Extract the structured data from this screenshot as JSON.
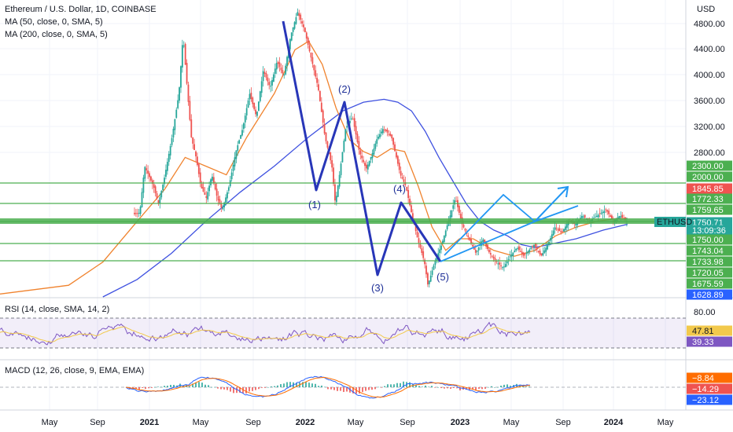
{
  "legend": {
    "title": "Ethereum / U.S. Dollar, 1D, COINBASE",
    "ma50": "MA (50, close, 0, SMA, 5)",
    "ma200": "MA (200, close, 0, SMA, 5)",
    "rsi": "RSI (14, close, SMA, 14, 2)",
    "macd": "MACD (12, 26, close, 9, EMA, EMA)"
  },
  "currency": "USD",
  "symbol_tag": "ETHUSD",
  "colors": {
    "up": "#26a69a",
    "down": "#ef5350",
    "ma50": "#f0832e",
    "ma200": "#3f51e0",
    "wave": "#2836b8",
    "arrow": "#2196f3",
    "hline": "#4caf50",
    "rsi": "#7e57c2",
    "rsi_ma": "#f2c94c",
    "macd": "#2962ff",
    "signal": "#ff6d00"
  },
  "chart_data": {
    "type": "line",
    "x_labels": [
      "May",
      "Sep",
      "2021",
      "May",
      "Sep",
      "2022",
      "May",
      "Sep",
      "2023",
      "May",
      "Sep",
      "2024",
      "May"
    ],
    "y_ticks": [
      "4800.00",
      "4400.00",
      "4000.00",
      "3600.00",
      "3200.00",
      "2800.00"
    ],
    "price_tags": [
      {
        "label": "2300.00",
        "color": "#4caf50"
      },
      {
        "label": "2000.00",
        "color": "#4caf50"
      },
      {
        "label": "1845.85",
        "color": "#ef5350"
      },
      {
        "label": "1772.33",
        "color": "#4caf50"
      },
      {
        "label": "1759.65",
        "color": "#4caf50"
      },
      {
        "label": "1750.71",
        "color": "#26a69a"
      },
      {
        "label": "13:09:36",
        "color": "#26a69a"
      },
      {
        "label": "1750.00",
        "color": "#4caf50"
      },
      {
        "label": "1743.04",
        "color": "#4caf50"
      },
      {
        "label": "1733.98",
        "color": "#4caf50"
      },
      {
        "label": "1720.05",
        "color": "#4caf50"
      },
      {
        "label": "1675.59",
        "color": "#4caf50"
      },
      {
        "label": "1628.89",
        "color": "#2962ff"
      }
    ],
    "rsi_ticks": [
      "80.00"
    ],
    "rsi_tags": [
      {
        "label": "47.81",
        "color": "#f2c94c"
      },
      {
        "label": "39.33",
        "color": "#7e57c2"
      }
    ],
    "macd_tags": [
      {
        "label": "−8.84",
        "color": "#ff6d00"
      },
      {
        "label": "−14.29",
        "color": "#ef5350"
      },
      {
        "label": "−23.12",
        "color": "#2962ff"
      }
    ],
    "wave_labels": [
      "(1)",
      "(2)",
      "(3)",
      "(4)",
      "(5)"
    ],
    "price_path": [
      [
        0.0,
        0.98
      ],
      [
        0.05,
        0.96
      ],
      [
        0.1,
        0.93
      ],
      [
        0.13,
        0.88
      ],
      [
        0.15,
        0.82
      ],
      [
        0.17,
        0.75
      ],
      [
        0.19,
        0.72
      ],
      [
        0.205,
        0.71
      ],
      [
        0.212,
        0.55
      ],
      [
        0.225,
        0.62
      ],
      [
        0.232,
        0.68
      ],
      [
        0.24,
        0.6
      ],
      [
        0.252,
        0.45
      ],
      [
        0.262,
        0.3
      ],
      [
        0.268,
        0.1
      ],
      [
        0.274,
        0.28
      ],
      [
        0.28,
        0.45
      ],
      [
        0.287,
        0.52
      ],
      [
        0.294,
        0.62
      ],
      [
        0.302,
        0.66
      ],
      [
        0.31,
        0.58
      ],
      [
        0.318,
        0.66
      ],
      [
        0.325,
        0.7
      ],
      [
        0.335,
        0.62
      ],
      [
        0.345,
        0.5
      ],
      [
        0.355,
        0.42
      ],
      [
        0.365,
        0.3
      ],
      [
        0.375,
        0.38
      ],
      [
        0.385,
        0.22
      ],
      [
        0.395,
        0.28
      ],
      [
        0.405,
        0.19
      ],
      [
        0.415,
        0.24
      ],
      [
        0.425,
        0.1
      ],
      [
        0.435,
        0.02
      ],
      [
        0.445,
        0.08
      ],
      [
        0.455,
        0.18
      ],
      [
        0.465,
        0.28
      ],
      [
        0.475,
        0.45
      ],
      [
        0.485,
        0.55
      ],
      [
        0.49,
        0.68
      ],
      [
        0.495,
        0.6
      ],
      [
        0.505,
        0.42
      ],
      [
        0.515,
        0.38
      ],
      [
        0.525,
        0.5
      ],
      [
        0.535,
        0.56
      ],
      [
        0.545,
        0.5
      ],
      [
        0.55,
        0.46
      ],
      [
        0.56,
        0.42
      ],
      [
        0.572,
        0.45
      ],
      [
        0.585,
        0.58
      ],
      [
        0.593,
        0.62
      ],
      [
        0.6,
        0.7
      ],
      [
        0.61,
        0.8
      ],
      [
        0.62,
        0.88
      ],
      [
        0.625,
        0.96
      ],
      [
        0.635,
        0.88
      ],
      [
        0.645,
        0.82
      ],
      [
        0.655,
        0.74
      ],
      [
        0.665,
        0.66
      ],
      [
        0.675,
        0.75
      ],
      [
        0.685,
        0.8
      ],
      [
        0.695,
        0.85
      ],
      [
        0.705,
        0.8
      ],
      [
        0.715,
        0.85
      ],
      [
        0.725,
        0.88
      ],
      [
        0.735,
        0.9
      ],
      [
        0.745,
        0.86
      ],
      [
        0.755,
        0.83
      ],
      [
        0.765,
        0.86
      ],
      [
        0.772,
        0.84
      ],
      [
        0.78,
        0.82
      ],
      [
        0.79,
        0.86
      ],
      [
        0.8,
        0.82
      ],
      [
        0.81,
        0.76
      ],
      [
        0.82,
        0.78
      ],
      [
        0.83,
        0.74
      ],
      [
        0.84,
        0.75
      ],
      [
        0.85,
        0.72
      ],
      [
        0.86,
        0.74
      ],
      [
        0.872,
        0.72
      ],
      [
        0.885,
        0.7
      ],
      [
        0.895,
        0.74
      ],
      [
        0.905,
        0.72
      ],
      [
        0.915,
        0.74
      ]
    ],
    "ma50_path": [
      [
        0.0,
        0.99
      ],
      [
        0.1,
        0.96
      ],
      [
        0.15,
        0.88
      ],
      [
        0.2,
        0.74
      ],
      [
        0.24,
        0.63
      ],
      [
        0.27,
        0.52
      ],
      [
        0.3,
        0.55
      ],
      [
        0.33,
        0.58
      ],
      [
        0.36,
        0.45
      ],
      [
        0.4,
        0.3
      ],
      [
        0.43,
        0.15
      ],
      [
        0.45,
        0.12
      ],
      [
        0.47,
        0.2
      ],
      [
        0.49,
        0.35
      ],
      [
        0.51,
        0.46
      ],
      [
        0.53,
        0.5
      ],
      [
        0.55,
        0.52
      ],
      [
        0.57,
        0.49
      ],
      [
        0.59,
        0.5
      ],
      [
        0.61,
        0.62
      ],
      [
        0.63,
        0.76
      ],
      [
        0.65,
        0.84
      ],
      [
        0.67,
        0.8
      ],
      [
        0.69,
        0.8
      ],
      [
        0.72,
        0.84
      ],
      [
        0.75,
        0.86
      ],
      [
        0.78,
        0.84
      ],
      [
        0.81,
        0.79
      ],
      [
        0.84,
        0.76
      ],
      [
        0.87,
        0.74
      ],
      [
        0.9,
        0.73
      ],
      [
        0.915,
        0.73
      ]
    ],
    "ma200_path": [
      [
        0.15,
        1.0
      ],
      [
        0.2,
        0.94
      ],
      [
        0.25,
        0.85
      ],
      [
        0.3,
        0.74
      ],
      [
        0.35,
        0.64
      ],
      [
        0.4,
        0.55
      ],
      [
        0.45,
        0.45
      ],
      [
        0.5,
        0.36
      ],
      [
        0.53,
        0.33
      ],
      [
        0.56,
        0.32
      ],
      [
        0.58,
        0.33
      ],
      [
        0.6,
        0.36
      ],
      [
        0.62,
        0.43
      ],
      [
        0.64,
        0.52
      ],
      [
        0.66,
        0.6
      ],
      [
        0.68,
        0.68
      ],
      [
        0.7,
        0.74
      ],
      [
        0.72,
        0.77
      ],
      [
        0.74,
        0.79
      ],
      [
        0.76,
        0.82
      ],
      [
        0.78,
        0.83
      ],
      [
        0.8,
        0.82
      ],
      [
        0.84,
        0.8
      ],
      [
        0.88,
        0.77
      ],
      [
        0.915,
        0.75
      ]
    ]
  }
}
